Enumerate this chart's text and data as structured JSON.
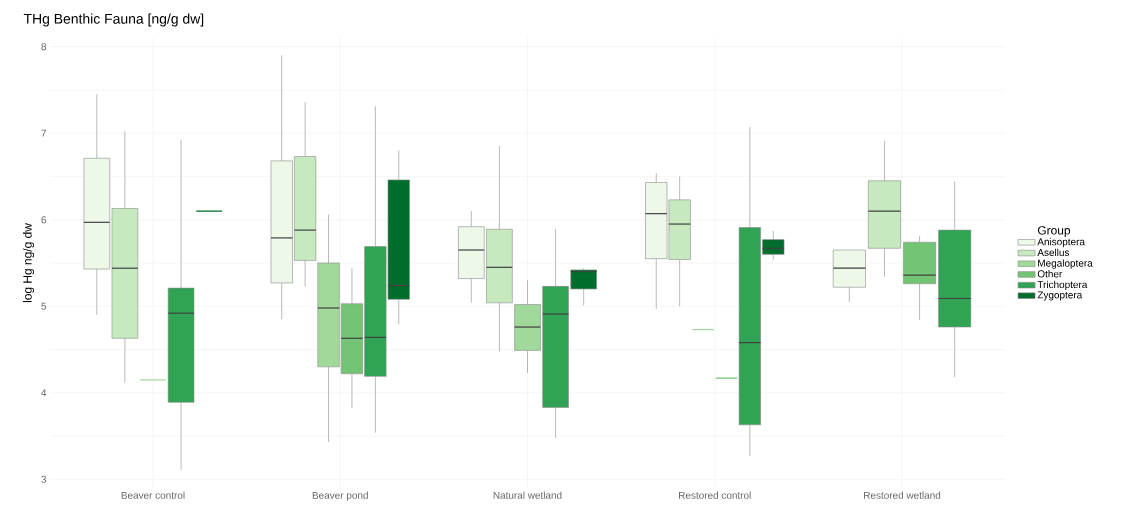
{
  "chart_data": {
    "type": "box",
    "title": "THg Benthic Fauna [ng/g dw]",
    "ylabel": "log Hg ng/g dw",
    "legend_title": "Group",
    "legend": "right",
    "grid": true,
    "categories": [
      "Beaver control",
      "Beaver pond",
      "Natural wetland",
      "Restored control",
      "Restored wetland"
    ],
    "ylim": [
      2.9,
      8.1
    ],
    "yticks": [
      3,
      {
        "value": 3.5,
        "label": null
      },
      4,
      {
        "value": 4.5,
        "label": null
      },
      5,
      {
        "value": 5.5,
        "label": null
      },
      6,
      {
        "value": 6.5,
        "label": null
      },
      7,
      {
        "value": 7.5,
        "label": null
      },
      8
    ],
    "series": [
      {
        "name": "Anisoptera",
        "color": "#edf8e9",
        "boxes": [
          {
            "low": 4.9,
            "q1": 5.43,
            "median": 5.97,
            "q3": 6.71,
            "high": 7.45
          },
          {
            "low": 4.85,
            "q1": 5.27,
            "median": 5.79,
            "q3": 6.68,
            "high": 7.9
          },
          {
            "low": 5.04,
            "q1": 5.32,
            "median": 5.65,
            "q3": 5.92,
            "high": 6.1
          },
          {
            "low": 4.97,
            "q1": 5.55,
            "median": 6.07,
            "q3": 6.43,
            "high": 6.54
          },
          {
            "low": 5.05,
            "q1": 5.22,
            "median": 5.44,
            "q3": 5.65,
            "high": 5.65
          }
        ]
      },
      {
        "name": "Asellus",
        "color": "#c7e9c0",
        "boxes": [
          {
            "low": 4.12,
            "q1": 4.63,
            "median": 5.44,
            "q3": 6.13,
            "high": 7.02
          },
          {
            "low": 5.23,
            "q1": 5.53,
            "median": 5.88,
            "q3": 6.73,
            "high": 7.36
          },
          {
            "low": 4.48,
            "q1": 5.04,
            "median": 5.45,
            "q3": 5.89,
            "high": 6.85
          },
          {
            "low": 5.0,
            "q1": 5.54,
            "median": 5.95,
            "q3": 6.23,
            "high": 6.5
          },
          {
            "low": 5.34,
            "q1": 5.67,
            "median": 6.1,
            "q3": 6.45,
            "high": 6.91
          }
        ]
      },
      {
        "name": "Megaloptera",
        "color": "#a1d99b",
        "boxes": [
          {
            "low": 4.15,
            "q1": 4.15,
            "median": 4.15,
            "q3": 4.15,
            "high": 4.15
          },
          {
            "low": 3.43,
            "q1": 4.3,
            "median": 4.98,
            "q3": 5.5,
            "high": 6.06
          },
          {
            "low": 4.23,
            "q1": 4.49,
            "median": 4.76,
            "q3": 5.02,
            "high": 5.3
          },
          {
            "low": 4.73,
            "q1": 4.73,
            "median": 4.73,
            "q3": 4.73,
            "high": 4.73
          },
          null
        ]
      },
      {
        "name": "Other",
        "color": "#74c476",
        "boxes": [
          null,
          {
            "low": 3.82,
            "q1": 4.22,
            "median": 4.63,
            "q3": 5.03,
            "high": 5.44
          },
          null,
          {
            "low": 4.17,
            "q1": 4.17,
            "median": 4.17,
            "q3": 4.17,
            "high": 4.17
          },
          {
            "low": 4.84,
            "q1": 5.26,
            "median": 5.36,
            "q3": 5.74,
            "high": 5.81
          }
        ]
      },
      {
        "name": "Trichoptera",
        "color": "#31a354",
        "boxes": [
          {
            "low": 3.11,
            "q1": 3.89,
            "median": 4.92,
            "q3": 5.21,
            "high": 6.92
          },
          {
            "low": 3.54,
            "q1": 4.19,
            "median": 4.64,
            "q3": 5.69,
            "high": 7.31
          },
          {
            "low": 3.48,
            "q1": 3.83,
            "median": 4.91,
            "q3": 5.23,
            "high": 5.89
          },
          {
            "low": 3.27,
            "q1": 3.63,
            "median": 4.58,
            "q3": 5.91,
            "high": 7.07
          },
          {
            "low": 4.18,
            "q1": 4.76,
            "median": 5.09,
            "q3": 5.88,
            "high": 6.44
          }
        ]
      },
      {
        "name": "Zygoptera",
        "color": "#006d2c",
        "boxes": [
          {
            "low": 6.1,
            "q1": 6.1,
            "median": 6.1,
            "q3": 6.1,
            "high": 6.1
          },
          {
            "low": 4.79,
            "q1": 5.08,
            "median": 5.24,
            "q3": 6.46,
            "high": 6.8
          },
          {
            "low": 5.01,
            "q1": 5.2,
            "median": 5.4,
            "q3": 5.42,
            "high": 5.44
          },
          {
            "low": 5.54,
            "q1": 5.6,
            "median": 5.67,
            "q3": 5.77,
            "high": 5.87
          },
          null
        ]
      }
    ]
  }
}
